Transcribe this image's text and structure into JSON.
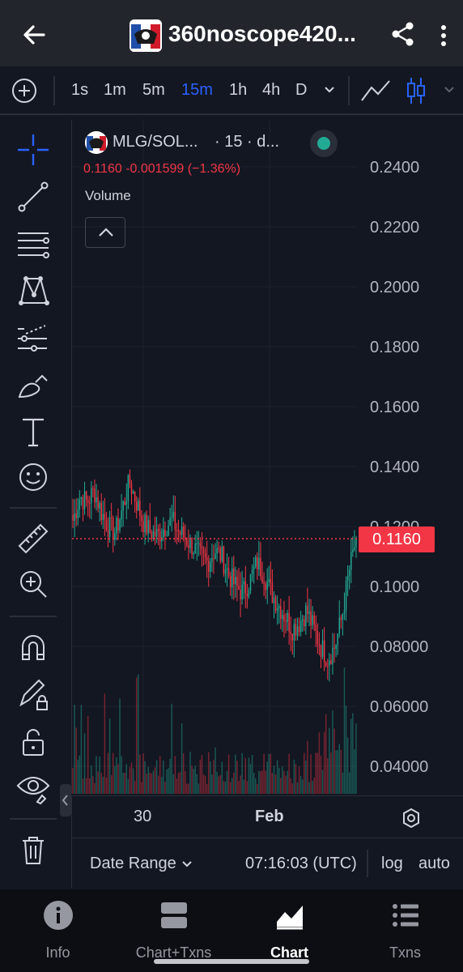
{
  "header": {
    "title": "360noscope420...",
    "back_icon": "arrow-left-icon",
    "share_icon": "share-icon",
    "more_icon": "more-vertical-icon"
  },
  "toolbar": {
    "timeframes": [
      "1s",
      "1m",
      "5m",
      "15m",
      "1h",
      "4h",
      "D"
    ],
    "active_timeframe": "15m",
    "accent": "#2962ff"
  },
  "chart": {
    "symbol": "MLG/SOL...",
    "interval": "· 15 · d...",
    "ohlc_line": "0.1160  -0.001599 (−1.36%)",
    "volume_label": "Volume",
    "price_tag": "0.1160",
    "y_labels": [
      "0.2400",
      "0.2200",
      "0.2000",
      "0.1800",
      "0.1600",
      "0.1400",
      "0.1200",
      "0.1000",
      "0.08000",
      "0.06000",
      "0.04000"
    ],
    "x_labels": [
      "30",
      "Feb"
    ],
    "up_color": "#22ab94",
    "down_color": "#f23645"
  },
  "chart_data": {
    "type": "candlestick",
    "y_ticks": [
      0.24,
      0.22,
      0.2,
      0.18,
      0.16,
      0.14,
      0.12,
      0.1,
      0.08,
      0.06,
      0.04
    ],
    "ylim": [
      0.04,
      0.24
    ],
    "last_price": 0.116,
    "change": -0.001599,
    "change_pct": -1.36,
    "x_ticks": [
      "30",
      "Feb"
    ],
    "close_trend": [
      0.122,
      0.13,
      0.128,
      0.132,
      0.125,
      0.12,
      0.118,
      0.126,
      0.135,
      0.128,
      0.121,
      0.118,
      0.117,
      0.12,
      0.122,
      0.118,
      0.116,
      0.113,
      0.11,
      0.108,
      0.112,
      0.11,
      0.104,
      0.1,
      0.098,
      0.102,
      0.108,
      0.104,
      0.098,
      0.094,
      0.09,
      0.086,
      0.088,
      0.092,
      0.086,
      0.08,
      0.076,
      0.08,
      0.09,
      0.105,
      0.116
    ]
  },
  "bottom_bar": {
    "date_range": "Date Range",
    "time": "07:16:03 (UTC)",
    "log": "log",
    "auto": "auto"
  },
  "nav": {
    "items": [
      "Info",
      "Chart+Txns",
      "Chart",
      "Txns"
    ],
    "active": "Chart"
  }
}
